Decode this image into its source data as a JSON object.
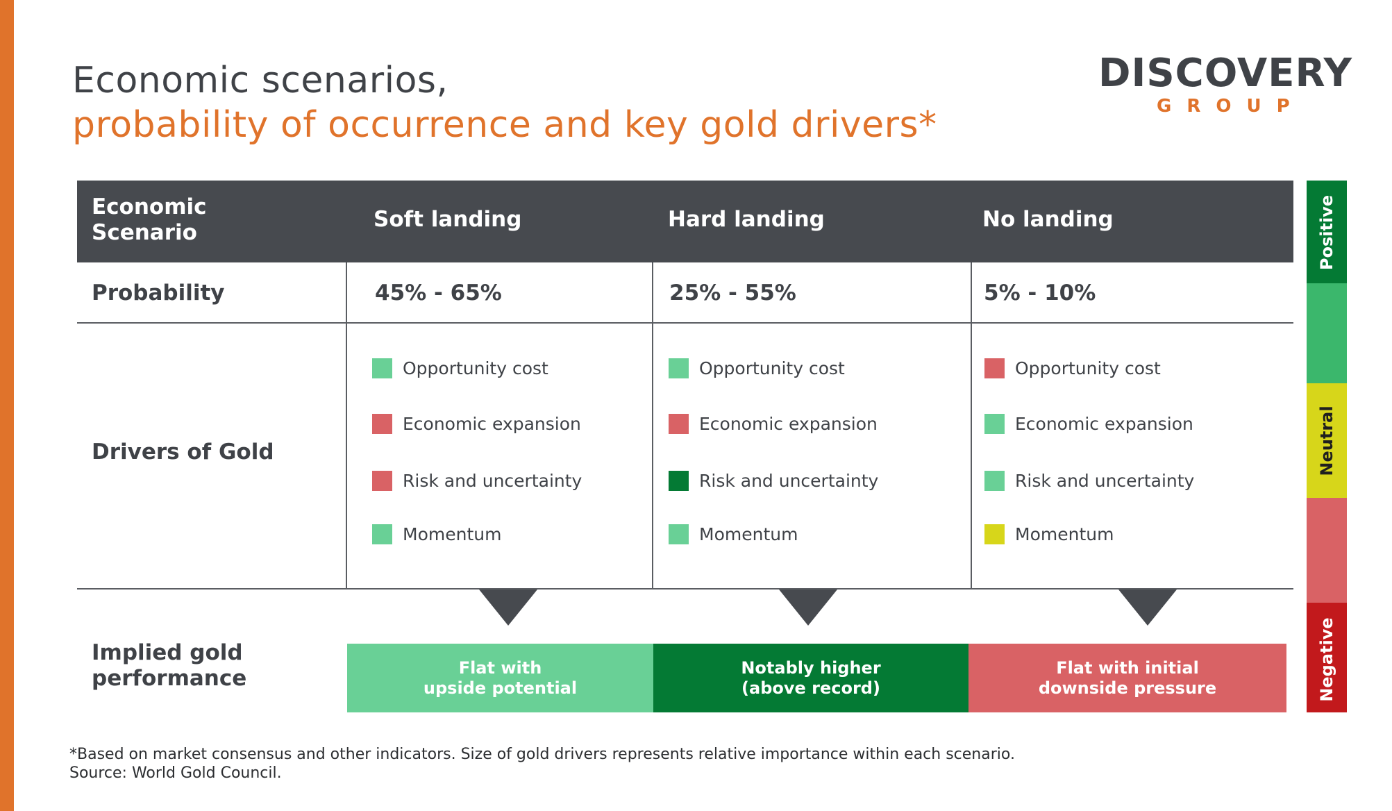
{
  "title": {
    "line1": "Economic scenarios,",
    "line2": "probability of occurrence and key gold drivers*"
  },
  "logo": {
    "wordmark": "DISCOVERY",
    "sub": "GROUP"
  },
  "colors": {
    "accent": "#e0732b",
    "header": "#474a4f",
    "positive_strong": "#047a34",
    "positive": "#3bb76c",
    "positive_light": "#69d096",
    "neutral": "#d7d61a",
    "negative_light": "#d96265",
    "negative_strong": "#c2191c"
  },
  "table": {
    "header": {
      "scenario_label": "Economic Scenario",
      "columns": [
        "Soft landing",
        "Hard landing",
        "No landing"
      ]
    },
    "probability": {
      "label": "Probability",
      "values": [
        "45% - 65%",
        "25% - 55%",
        "5% - 10%"
      ]
    },
    "drivers": {
      "label": "Drivers of Gold",
      "columns": [
        [
          {
            "name": "Opportunity cost",
            "rating": "positive_light"
          },
          {
            "name": "Economic expansion",
            "rating": "negative_light"
          },
          {
            "name": "Risk and uncertainty",
            "rating": "negative_light"
          },
          {
            "name": "Momentum",
            "rating": "positive_light"
          }
        ],
        [
          {
            "name": "Opportunity cost",
            "rating": "positive_light"
          },
          {
            "name": "Economic expansion",
            "rating": "negative_light"
          },
          {
            "name": "Risk and uncertainty",
            "rating": "positive_strong"
          },
          {
            "name": "Momentum",
            "rating": "positive_light"
          }
        ],
        [
          {
            "name": "Opportunity cost",
            "rating": "negative_light"
          },
          {
            "name": "Economic expansion",
            "rating": "positive_light"
          },
          {
            "name": "Risk and uncertainty",
            "rating": "positive_light"
          },
          {
            "name": "Momentum",
            "rating": "neutral"
          }
        ]
      ]
    },
    "performance": {
      "label": "Implied gold performance",
      "values": [
        {
          "text": "Flat with\nupside potential",
          "rating": "positive_light"
        },
        {
          "text": "Notably higher\n(above record)",
          "rating": "positive_strong"
        },
        {
          "text": "Flat with initial\ndownside pressure",
          "rating": "negative_light"
        }
      ]
    }
  },
  "legend": {
    "positive": "Positive",
    "neutral": "Neutral",
    "negative": "Negative"
  },
  "footnote": {
    "line1": "*Based on market consensus and other indicators. Size of gold drivers represents relative importance within each scenario.",
    "line2": "Source: World Gold Council."
  }
}
